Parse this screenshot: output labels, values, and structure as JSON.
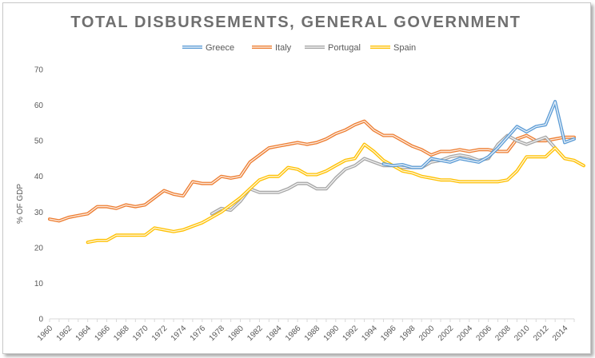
{
  "chart_data": {
    "type": "line",
    "title": "TOTAL DISBURSEMENTS, GENERAL GOVERNMENT",
    "xlabel": "",
    "ylabel": "% OF GDP",
    "xlim": [
      1960,
      2015
    ],
    "ylim": [
      0,
      70
    ],
    "yticks": [
      0,
      10,
      20,
      30,
      40,
      50,
      60,
      70
    ],
    "xtick_labels": [
      "1960",
      "1962",
      "1964",
      "1966",
      "1968",
      "1970",
      "1972",
      "1974",
      "1976",
      "1978",
      "1980",
      "1982",
      "1984",
      "1986",
      "1988",
      "1990",
      "1992",
      "1994",
      "1996",
      "1998",
      "2000",
      "2002",
      "2004",
      "2006",
      "2008",
      "2010",
      "2012",
      "2014"
    ],
    "legend_position": "top",
    "grid": false,
    "series": [
      {
        "name": "Greece",
        "color": "#5b9bd5",
        "start_year": 1995,
        "values": [
          43.5,
          43,
          43.3,
          42.5,
          42.5,
          45,
          44.5,
          44,
          45,
          44.5,
          44,
          45.5,
          48,
          51,
          54,
          52.5,
          54,
          54.5,
          61,
          49.5,
          50.5
        ]
      },
      {
        "name": "Italy",
        "color": "#ed7d31",
        "start_year": 1960,
        "values": [
          28,
          27.5,
          28.5,
          29,
          29.5,
          31.5,
          31.5,
          31,
          32,
          31.5,
          32,
          34,
          36,
          35,
          34.5,
          38.5,
          38,
          38,
          40,
          39.5,
          40,
          44,
          46,
          48,
          48.5,
          49,
          49.5,
          49,
          49.5,
          50.5,
          52,
          53,
          54.5,
          55.5,
          53,
          51.5,
          51.5,
          50,
          48.5,
          47.5,
          46,
          47,
          47,
          47.5,
          47,
          47.5,
          47.5,
          47,
          47,
          50.5,
          51.5,
          50,
          50,
          50.5,
          51,
          51
        ]
      },
      {
        "name": "Portugal",
        "color": "#a5a5a5",
        "start_year": 1977,
        "values": [
          29.5,
          31,
          30.5,
          33,
          36.5,
          35.5,
          35.5,
          35.5,
          36.5,
          38,
          38,
          36.5,
          36.5,
          39.5,
          42,
          43,
          45,
          44,
          43,
          43,
          42.5,
          42.5,
          42.5,
          44,
          44.5,
          45.5,
          46,
          45.5,
          44.5,
          45,
          49,
          51.5,
          50,
          49,
          50,
          51,
          48
        ]
      },
      {
        "name": "Spain",
        "color": "#ffc000",
        "start_year": 1964,
        "values": [
          21.5,
          22,
          22,
          23.5,
          23.5,
          23.5,
          23.5,
          25.5,
          25,
          24.5,
          25,
          26,
          27,
          28.5,
          30,
          32,
          34,
          36.5,
          39,
          40,
          40,
          42.5,
          42,
          40.5,
          40.5,
          41.5,
          43,
          44.5,
          45,
          49,
          47,
          44.5,
          43,
          41.5,
          41,
          40,
          39.5,
          39,
          39,
          38.5,
          38.5,
          38.5,
          38.5,
          38.5,
          39,
          41.5,
          45.5,
          45.5,
          45.5,
          48,
          45,
          44.5,
          43
        ]
      }
    ]
  }
}
